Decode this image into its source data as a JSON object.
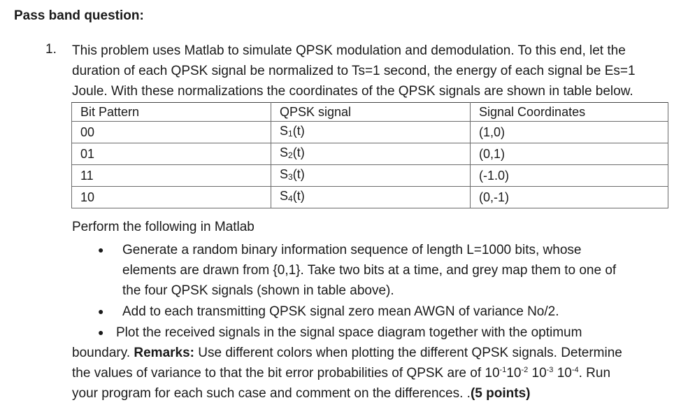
{
  "heading": "Pass band question:",
  "question": {
    "number": "1.",
    "lines": [
      "This problem uses Matlab to simulate QPSK modulation and demodulation.  To this end, let the",
      "duration of each QPSK signal be normalized to Ts=1 second, the energy of each signal be Es=1",
      "Joule. With these normalizations the coordinates of the QPSK signals are shown in table below."
    ]
  },
  "table": {
    "headers": [
      "Bit Pattern",
      "QPSK signal",
      "Signal Coordinates"
    ],
    "rows": [
      {
        "bits": "00",
        "signal": "S",
        "sub": "1",
        "arg": "(t)",
        "coords": "(1,0)"
      },
      {
        "bits": "01",
        "signal": "S",
        "sub": "2",
        "arg": "(t)",
        "coords": "(0,1)"
      },
      {
        "bits": "11",
        "signal": "S",
        "sub": "3",
        "arg": "(t)",
        "coords": "(-1.0)"
      },
      {
        "bits": "10",
        "signal": "S",
        "sub": "4",
        "arg": "(t)",
        "coords": "(0,-1)"
      }
    ]
  },
  "perform": "Perform the following in Matlab",
  "bullets": {
    "b1": [
      "Generate a random binary information sequence of length L=1000 bits, whose",
      "elements are drawn from {0,1}. Take two bits at a time, and grey map them to one of",
      "the four QPSK signals (shown in table above)."
    ],
    "b2": "Add to each transmitting QPSK signal zero mean AWGN of variance No/2.",
    "b3": "Plot the received signals in the signal space diagram together with the optimum"
  },
  "continuation": {
    "l1_pre": "boundary. ",
    "l1_bold": "Remarks:",
    "l1_post": " Use different colors when plotting the different QPSK signals.  Determine",
    "l2_pre": "the values of variance to that the bit error probabilities of QPSK are of 10",
    "e1": "-1",
    "t1": "10",
    "e2": "-2",
    "t2": " 10",
    "e3": "-3",
    "t3": " 10",
    "e4": "-4",
    "l2_post": ". Run",
    "l3_pre": "your program for each such case and comment on the differences. .",
    "l3_bold": "(5 points)"
  }
}
